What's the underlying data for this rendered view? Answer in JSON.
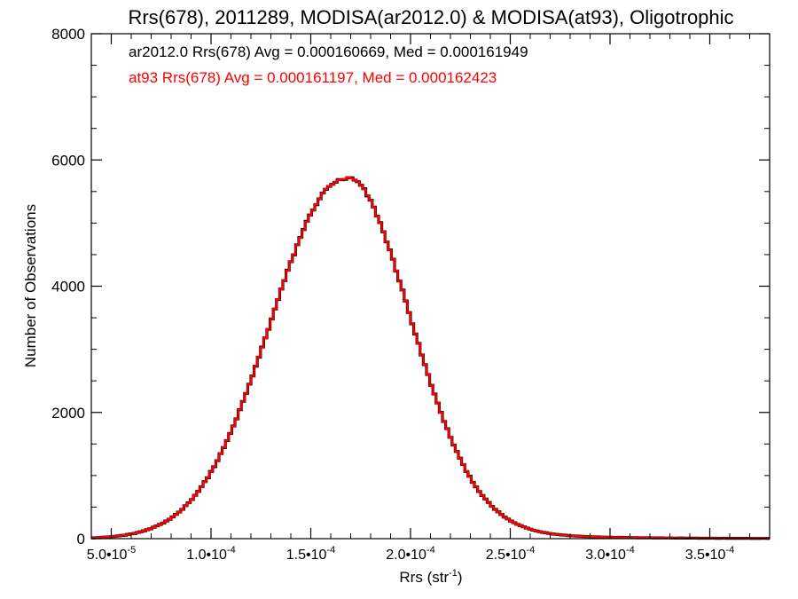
{
  "chart_data": {
    "type": "histogram",
    "title": "Rrs(678), 2011289, MODISA(ar2012.0) & MODISA(at93), Oligotrophic",
    "xlabel": "Rrs (str",
    "xlabel_sup": "-1",
    "xlabel_close": ")",
    "ylabel": "Number of Observations",
    "xlim": [
      4e-05,
      0.00038
    ],
    "ylim": [
      0,
      8000
    ],
    "x_ticks": [
      5e-05,
      0.0001,
      0.00015,
      0.0002,
      0.00025,
      0.0003,
      0.00035
    ],
    "x_tick_mantissa": [
      "5.0",
      "1.0",
      "1.5",
      "2.0",
      "2.5",
      "3.0",
      "3.5"
    ],
    "x_tick_sep": "•10",
    "x_tick_exp": [
      "-5",
      "-4",
      "-4",
      "-4",
      "-4",
      "-4",
      "-4"
    ],
    "y_ticks": [
      0,
      2000,
      4000,
      6000,
      8000
    ],
    "y_tick_labels": [
      "0",
      "2000",
      "4000",
      "6000",
      "8000"
    ],
    "grid": false,
    "legend_position": "top-left",
    "annotations": [
      {
        "text": "ar2012.0 Rrs(678) Avg = 0.000160669, Med = 0.000161949",
        "color": "#000000"
      },
      {
        "text": "at93 Rrs(678) Avg = 0.000161197, Med = 0.000162423",
        "color": "#ff0000"
      }
    ],
    "series": [
      {
        "color": "#000000",
        "peak_x": 0.000166,
        "peak_y": 5680,
        "sigma_left": 3.6e-05,
        "sigma_right": 3.3e-05,
        "tail_decay": 4.5e-05,
        "key_points": [
          [
            4e-05,
            300
          ],
          [
            0.0001,
            2150
          ],
          [
            0.00015,
            5300
          ],
          [
            0.000158,
            6000
          ],
          [
            0.0002,
            2850
          ],
          [
            0.00025,
            900
          ],
          [
            0.0003,
            150
          ],
          [
            0.00035,
            40
          ],
          [
            0.00038,
            10
          ]
        ]
      },
      {
        "color": "#ff0000",
        "peak_x": 0.000166,
        "peak_y": 5680,
        "sigma_left": 3.6e-05,
        "sigma_right": 3.3e-05,
        "tail_decay": 4.5e-05,
        "key_points": [
          [
            4e-05,
            300
          ],
          [
            0.0001,
            2150
          ],
          [
            0.00015,
            5300
          ],
          [
            0.00016,
            5850
          ],
          [
            0.0002,
            2850
          ],
          [
            0.00025,
            880
          ],
          [
            0.0003,
            150
          ],
          [
            0.00035,
            40
          ],
          [
            0.00038,
            10
          ]
        ]
      }
    ]
  }
}
